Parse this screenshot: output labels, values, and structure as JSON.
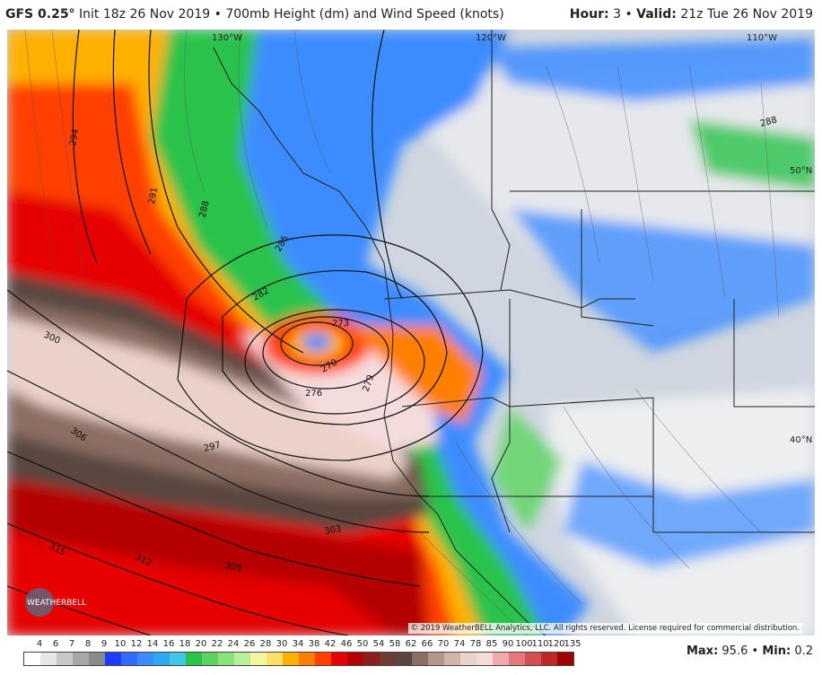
{
  "header": {
    "model": "GFS 0.25°",
    "init": "Init 18z 26 Nov 2019",
    "product": "700mb Height (dm) and Wind Speed (knots)",
    "hour_label": "Hour:",
    "hour_value": "3",
    "valid_label": "Valid:",
    "valid_value": "21z Tue 26 Nov 2019"
  },
  "map": {
    "lon_labels": [
      "130°W",
      "120°W",
      "110°W"
    ],
    "lat_labels": [
      "50°N",
      "40°N"
    ],
    "contour_labels": [
      "294",
      "291",
      "288",
      "285",
      "282",
      "273",
      "270",
      "276",
      "279",
      "297",
      "300",
      "306",
      "303",
      "309",
      "312",
      "315",
      "288"
    ],
    "copyright": "© 2019 WeatherBELL Analytics, LLC. All rights reserved. License required for commercial distribution.",
    "logo_text": "WEATHERBELL"
  },
  "colorbar": {
    "labels": [
      "4",
      "6",
      "7",
      "8",
      "9",
      "10",
      "12",
      "14",
      "16",
      "18",
      "20",
      "22",
      "24",
      "26",
      "28",
      "30",
      "34",
      "38",
      "42",
      "46",
      "50",
      "54",
      "58",
      "62",
      "66",
      "70",
      "74",
      "78",
      "85",
      "90",
      "100",
      "110",
      "120",
      "135"
    ],
    "colors": [
      "#ffffff",
      "#e6e6e6",
      "#c8c8c8",
      "#a8a8a8",
      "#8a8a8a",
      "#1e3cff",
      "#2f6bff",
      "#3c8cff",
      "#2fa8f0",
      "#3cc8e6",
      "#29c24b",
      "#5bd45f",
      "#8ae27a",
      "#b8ee9c",
      "#f5f5a0",
      "#ffe066",
      "#ffb000",
      "#ff8000",
      "#ff4000",
      "#e60000",
      "#b40000",
      "#8c1e1e",
      "#6e3c32",
      "#5a4640",
      "#8c6e64",
      "#b4968c",
      "#d2b4aa",
      "#ebd2c8",
      "#f5dcdc",
      "#f0aaaa",
      "#e67878",
      "#d25050",
      "#be2828",
      "#a00000"
    ]
  },
  "stats": {
    "max_label": "Max:",
    "max_value": "95.6",
    "min_label": "Min:",
    "min_value": "0.2"
  }
}
